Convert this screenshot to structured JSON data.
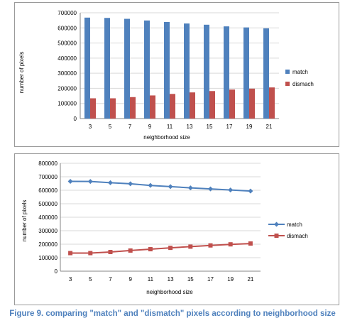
{
  "chart_data": [
    {
      "type": "bar",
      "categories": [
        "3",
        "5",
        "7",
        "9",
        "11",
        "13",
        "15",
        "17",
        "19",
        "21"
      ],
      "series": [
        {
          "name": "match",
          "values": [
            668000,
            666000,
            660000,
            649000,
            639000,
            629000,
            621000,
            610000,
            603000,
            597000
          ],
          "color": "#4f81bd"
        },
        {
          "name": "dismach",
          "values": [
            134000,
            134000,
            142000,
            153000,
            163000,
            173000,
            182000,
            192000,
            198000,
            206000
          ],
          "color": "#c0504d"
        }
      ],
      "xlabel": "neighborhood  size",
      "ylabel": "number of pixels",
      "ylim": [
        0,
        700000
      ],
      "yticks": [
        "0",
        "100000",
        "200000",
        "300000",
        "400000",
        "500000",
        "600000",
        "700000"
      ],
      "grid": true,
      "legend": "right"
    },
    {
      "type": "line",
      "categories": [
        "3",
        "5",
        "7",
        "9",
        "11",
        "13",
        "15",
        "17",
        "19",
        "21"
      ],
      "series": [
        {
          "name": "match",
          "values": [
            666000,
            665000,
            656000,
            648000,
            636000,
            627000,
            618000,
            610000,
            602000,
            594000
          ],
          "color": "#4f81bd",
          "marker": "diamond"
        },
        {
          "name": "dismach",
          "values": [
            134000,
            134000,
            142000,
            153000,
            163000,
            173000,
            182000,
            191000,
            199000,
            205000
          ],
          "color": "#c0504d",
          "marker": "square"
        }
      ],
      "xlabel": "neighborhood  size",
      "ylabel": "number of pixels",
      "ylim": [
        0,
        800000
      ],
      "yticks": [
        "0",
        "100000",
        "200000",
        "300000",
        "400000",
        "500000",
        "600000",
        "700000",
        "800000"
      ],
      "grid": true,
      "legend": "right"
    }
  ],
  "caption": "Figure 9. comparing \"match\" and \"dismatch\" pixels according to neighborhood size"
}
